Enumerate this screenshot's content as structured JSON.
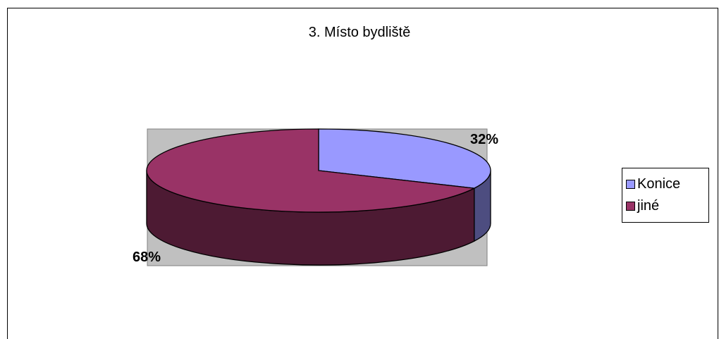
{
  "chart_data": {
    "type": "pie",
    "title": "3. Místo bydliště",
    "categories": [
      "Konice",
      "jiné"
    ],
    "values": [
      32,
      68
    ],
    "value_labels": [
      "32%",
      "68%"
    ],
    "colors": [
      "#9999ff",
      "#993366"
    ],
    "side_colors": [
      "#4d4d80",
      "#4d1a33"
    ],
    "plot_area_color": "#c0c0c0",
    "legend": {
      "position": "right",
      "entries": [
        "Konice",
        "jiné"
      ]
    },
    "three_d": true
  }
}
